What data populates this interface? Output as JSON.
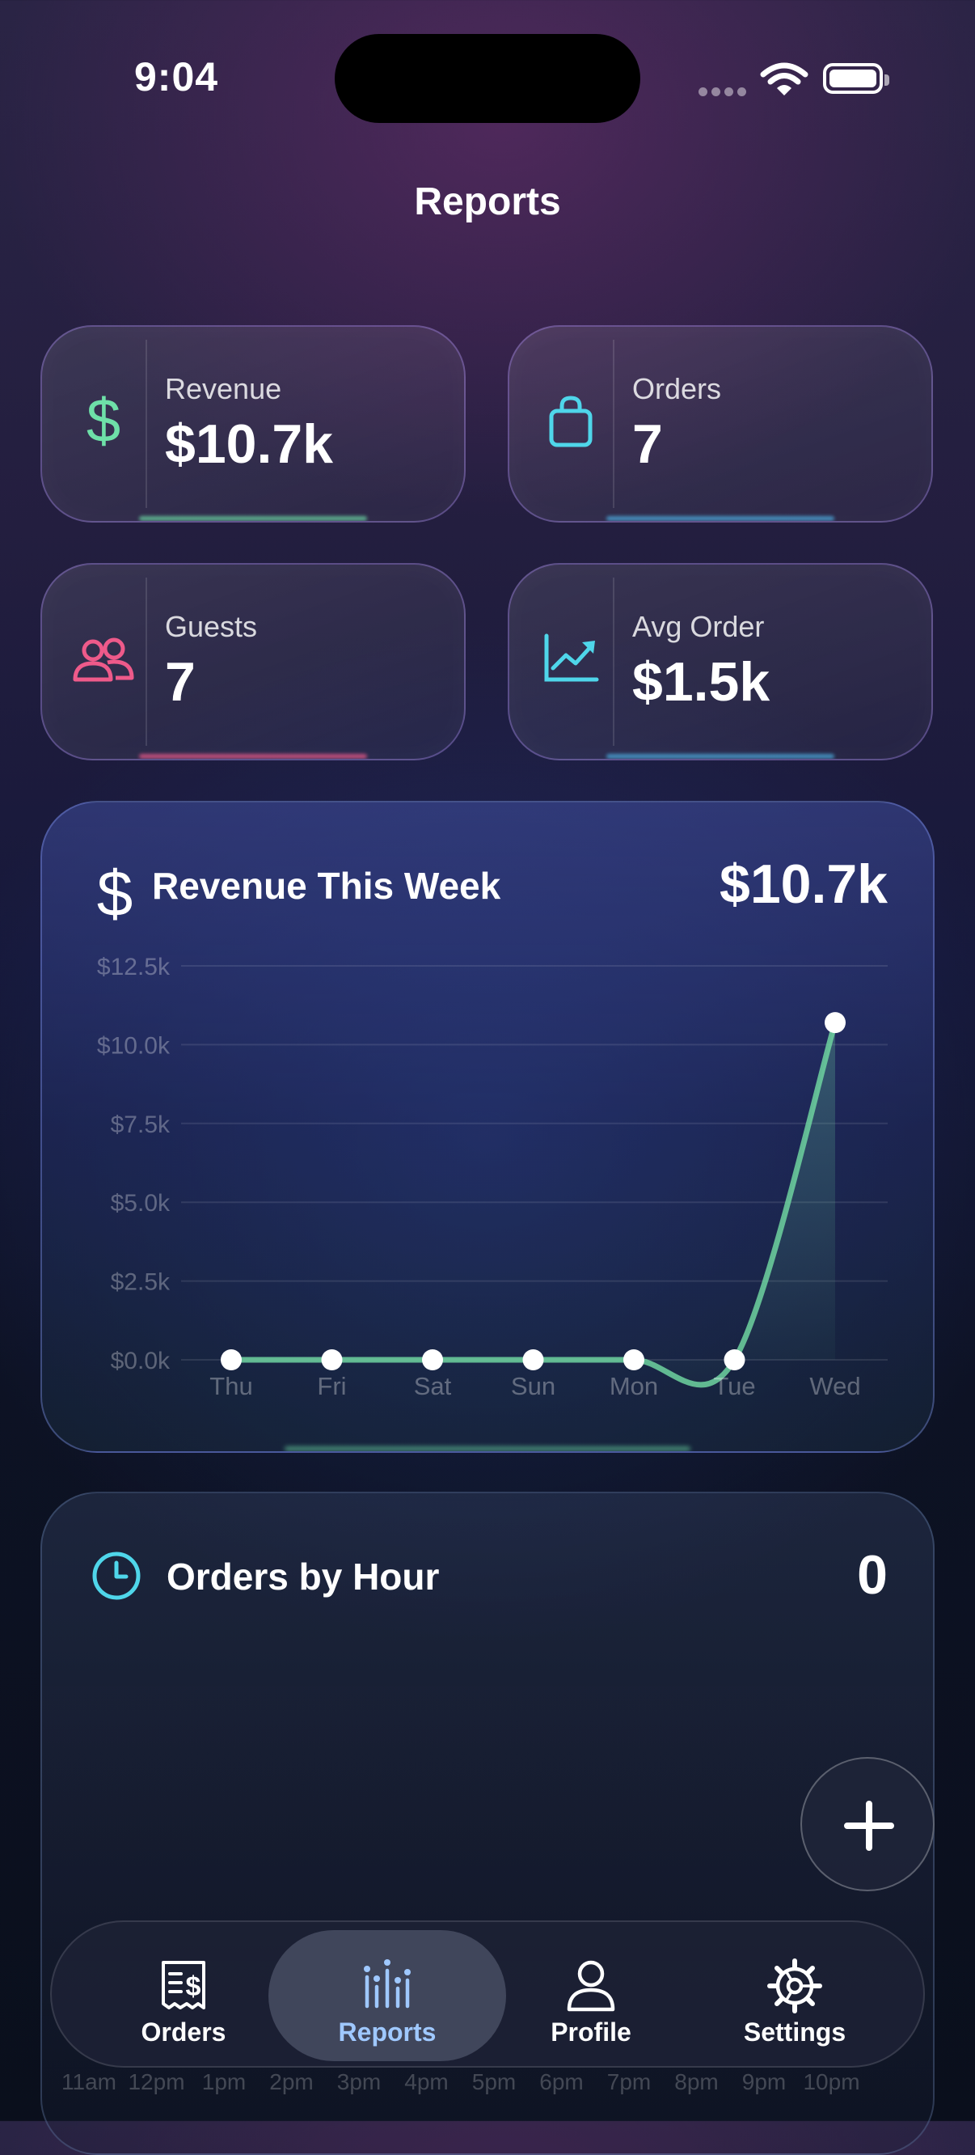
{
  "status_bar": {
    "time": "9:04"
  },
  "page_title": "Reports",
  "stats": [
    {
      "label": "Revenue",
      "value": "$10.7k",
      "icon": "dollar-icon",
      "color": "#6ee0a8"
    },
    {
      "label": "Orders",
      "value": "7",
      "icon": "shopping-bag-icon",
      "color": "#4fd6ea"
    },
    {
      "label": "Guests",
      "value": "7",
      "icon": "people-icon",
      "color": "#ee5a8a"
    },
    {
      "label": "Avg Order",
      "value": "$1.5k",
      "icon": "trend-up-icon",
      "color": "#4fd6ea"
    }
  ],
  "revenue_card": {
    "title": "Revenue This Week",
    "total": "$10.7k"
  },
  "orders_card": {
    "title": "Orders by Hour",
    "total": "0"
  },
  "chart_data": [
    {
      "type": "area",
      "categories": [
        "Thu",
        "Fri",
        "Sat",
        "Sun",
        "Mon",
        "Tue",
        "Wed"
      ],
      "values": [
        0,
        0,
        0,
        0,
        0,
        0,
        10700
      ],
      "ylim": [
        0,
        12500
      ],
      "y_ticks": [
        "$12.5k",
        "$10.0k",
        "$7.5k",
        "$5.0k",
        "$2.5k",
        "$0.0k"
      ],
      "y_tick_values": [
        12500,
        10000,
        7500,
        5000,
        2500,
        0
      ],
      "grid": true,
      "line_color": "#6ed3a0"
    },
    {
      "type": "bar",
      "categories": [
        "11am",
        "12pm",
        "1pm",
        "2pm",
        "3pm",
        "4pm",
        "5pm",
        "6pm",
        "7pm",
        "8pm",
        "9pm",
        "10pm"
      ],
      "values": [
        0,
        0,
        0,
        0,
        0,
        0,
        0,
        0,
        0,
        0,
        0,
        0
      ]
    }
  ],
  "tabs": [
    {
      "label": "Orders",
      "icon": "receipt-icon",
      "active": false
    },
    {
      "label": "Reports",
      "icon": "chart-bars-icon",
      "active": true
    },
    {
      "label": "Profile",
      "icon": "person-icon",
      "active": false
    },
    {
      "label": "Settings",
      "icon": "gear-icon",
      "active": false
    }
  ],
  "fab": {
    "icon": "plus-icon"
  }
}
